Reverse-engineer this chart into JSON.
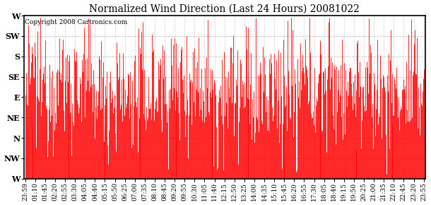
{
  "title": "Normalized Wind Direction (Last 24 Hours) 20081022",
  "copyright": "Copyright 2008 Cartronics.com",
  "bar_color": "#ff0000",
  "background_color": "#ffffff",
  "grid_color": "#b0b0b0",
  "ytick_labels": [
    "W",
    "NW",
    "N",
    "NE",
    "E",
    "SE",
    "S",
    "SW",
    "W"
  ],
  "ytick_values": [
    0,
    45,
    90,
    135,
    180,
    225,
    270,
    315,
    360
  ],
  "ylim": [
    0,
    360
  ],
  "xtick_labels": [
    "23:59",
    "01:10",
    "01:45",
    "02:20",
    "02:55",
    "03:30",
    "04:05",
    "04:40",
    "05:15",
    "05:50",
    "06:25",
    "07:00",
    "07:35",
    "08:10",
    "08:45",
    "09:20",
    "09:55",
    "10:30",
    "11:05",
    "11:40",
    "12:15",
    "12:50",
    "13:25",
    "14:00",
    "14:35",
    "15:10",
    "15:45",
    "16:20",
    "16:55",
    "17:30",
    "18:05",
    "18:40",
    "19:15",
    "19:50",
    "20:25",
    "21:00",
    "21:35",
    "22:10",
    "22:45",
    "23:20",
    "23:55"
  ],
  "n_points": 576,
  "seed": 12345,
  "base_direction": 200,
  "base_amplitude": 15,
  "base_period": 8,
  "noise_std": 70,
  "clip_min": 10,
  "clip_max": 355
}
